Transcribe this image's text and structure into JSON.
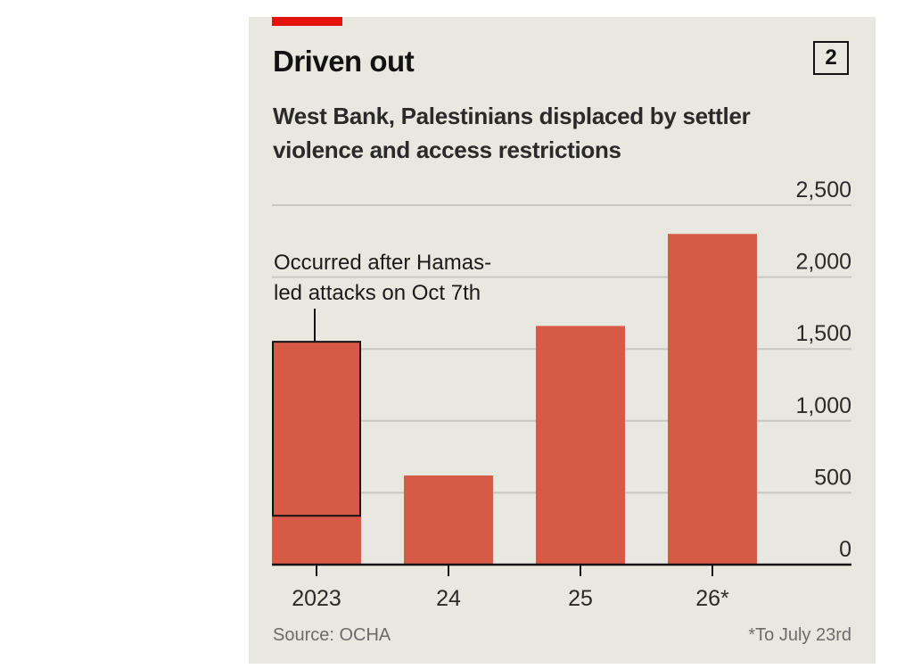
{
  "header": {
    "title": "Driven out",
    "chart_number": "2",
    "subtitle": "West Bank, Palestinians displaced by settler violence and access restrictions"
  },
  "footer": {
    "source": "Source: OCHA",
    "note": "*To July 23rd"
  },
  "colors": {
    "bar": "#d65a45",
    "accent": "#e3120b",
    "background": "#e9e8e0",
    "grid": "#c9c8c0",
    "text": "#121212"
  },
  "chart_data": {
    "type": "bar",
    "categories": [
      "2023",
      "24",
      "25",
      "26*"
    ],
    "values": [
      1550,
      620,
      1660,
      2300
    ],
    "ylim": [
      0,
      2500
    ],
    "yticks": [
      0,
      500,
      1000,
      1500,
      2000,
      2500
    ],
    "ytick_labels": [
      "0",
      "500",
      "1,000",
      "1,500",
      "2,000",
      "2,500"
    ],
    "y_axis_side": "right",
    "grid": true,
    "highlight": {
      "category": "2023",
      "from": 340,
      "to": 1550,
      "label": [
        "Occurred after Hamas-",
        "led attacks on Oct 7th"
      ]
    }
  }
}
